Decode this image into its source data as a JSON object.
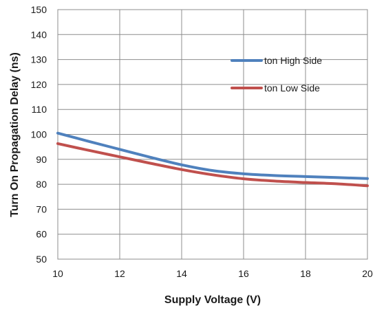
{
  "chart_data": {
    "type": "line",
    "title": "",
    "xlabel": "Supply Voltage (V)",
    "ylabel": "Turn On Propagation Delay (ns)",
    "xlim": [
      10,
      20
    ],
    "ylim": [
      50,
      150
    ],
    "xticks": [
      10,
      12,
      14,
      16,
      18,
      20
    ],
    "yticks": [
      50,
      60,
      70,
      80,
      90,
      100,
      110,
      120,
      130,
      140,
      150
    ],
    "grid": true,
    "legend_position": "right, upper-middle",
    "series": [
      {
        "name": "ton High Side",
        "color": "#4f81bd",
        "x": [
          10,
          11,
          12,
          13,
          14,
          15,
          16,
          17,
          18,
          19,
          20
        ],
        "y": [
          100.5,
          97.2,
          94.0,
          90.8,
          87.8,
          85.5,
          84.2,
          83.5,
          83.1,
          82.7,
          82.3
        ]
      },
      {
        "name": "ton Low Side",
        "color": "#c0504d",
        "x": [
          10,
          11,
          12,
          13,
          14,
          15,
          16,
          17,
          18,
          19,
          20
        ],
        "y": [
          96.3,
          93.6,
          91.0,
          88.4,
          85.9,
          83.8,
          82.2,
          81.3,
          80.7,
          80.2,
          79.4
        ]
      }
    ]
  }
}
